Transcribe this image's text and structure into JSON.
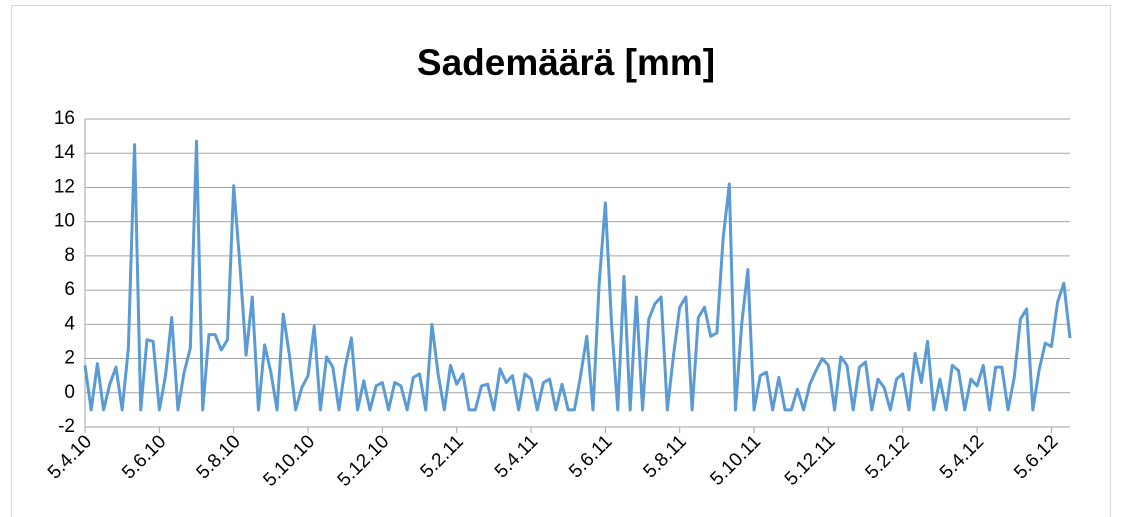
{
  "chart_data": {
    "type": "line",
    "title": "Sademäärä [mm]",
    "categories": [
      "5.4.10",
      null,
      null,
      null,
      null,
      null,
      null,
      null,
      null,
      null,
      null,
      null,
      "5.6.10",
      null,
      null,
      null,
      null,
      null,
      null,
      null,
      null,
      null,
      null,
      null,
      "5.8.10",
      null,
      null,
      null,
      null,
      null,
      null,
      null,
      null,
      null,
      null,
      null,
      "5.10.10",
      null,
      null,
      null,
      null,
      null,
      null,
      null,
      null,
      null,
      null,
      null,
      "5.12.10",
      null,
      null,
      null,
      null,
      null,
      null,
      null,
      null,
      null,
      null,
      null,
      "5.2.11",
      null,
      null,
      null,
      null,
      null,
      null,
      null,
      null,
      null,
      null,
      null,
      "5.4.11",
      null,
      null,
      null,
      null,
      null,
      null,
      null,
      null,
      null,
      null,
      null,
      "5.6.11",
      null,
      null,
      null,
      null,
      null,
      null,
      null,
      null,
      null,
      null,
      null,
      "5.8.11",
      null,
      null,
      null,
      null,
      null,
      null,
      null,
      null,
      null,
      null,
      null,
      "5.10.11",
      null,
      null,
      null,
      null,
      null,
      null,
      null,
      null,
      null,
      null,
      null,
      "5.12.11",
      null,
      null,
      null,
      null,
      null,
      null,
      null,
      null,
      null,
      null,
      null,
      "5.2.12",
      null,
      null,
      null,
      null,
      null,
      null,
      null,
      null,
      null,
      null,
      null,
      "5.4.12",
      null,
      null,
      null,
      null,
      null,
      null,
      null,
      null,
      null,
      null,
      null,
      "5.6.12",
      null,
      null,
      null
    ],
    "values": [
      1.6,
      -1,
      1.7,
      -1,
      0.5,
      1.5,
      -1,
      2.6,
      14.5,
      -1,
      3.1,
      3.0,
      -1,
      1.0,
      4.4,
      -1,
      1.2,
      2.6,
      14.7,
      -1,
      3.4,
      3.4,
      2.5,
      3.1,
      12.1,
      7.5,
      2.2,
      5.6,
      -1,
      2.8,
      1.2,
      -1,
      4.6,
      2.2,
      -1,
      0.3,
      1.0,
      3.9,
      -1,
      2.1,
      1.5,
      -1,
      1.5,
      3.2,
      -1,
      0.7,
      -1,
      0.4,
      0.6,
      -1,
      0.6,
      0.4,
      -1,
      0.9,
      1.1,
      -1,
      4.0,
      1.1,
      -1,
      1.6,
      0.5,
      1.1,
      -1,
      -1,
      0.4,
      0.5,
      -1,
      1.4,
      0.6,
      1.0,
      -1,
      1.1,
      0.8,
      -1,
      0.6,
      0.8,
      -1,
      0.5,
      -1,
      -1,
      1.0,
      3.3,
      -1,
      6.4,
      11.1,
      4.0,
      -1,
      6.8,
      -1,
      5.6,
      -1,
      4.3,
      5.2,
      5.6,
      -1,
      2.2,
      5.0,
      5.6,
      -1,
      4.4,
      5.0,
      3.3,
      3.5,
      9.0,
      12.2,
      -1,
      4.0,
      7.2,
      -1,
      1.0,
      1.2,
      -1,
      0.9,
      -1,
      -1,
      0.2,
      -1,
      0.5,
      1.3,
      2.0,
      1.6,
      -1,
      2.1,
      1.6,
      -1,
      1.5,
      1.8,
      -1,
      0.8,
      0.3,
      -1,
      0.8,
      1.1,
      -1,
      2.3,
      0.6,
      3.0,
      -1,
      0.8,
      -1,
      1.6,
      1.3,
      -1,
      0.8,
      0.4,
      1.6,
      -1,
      1.5,
      1.5,
      -1,
      0.9,
      4.3,
      4.9,
      -1,
      1.3,
      2.9,
      2.7,
      5.3,
      6.4,
      3.2
    ],
    "color": "#5b9bd5",
    "ylim": [
      -2,
      16
    ],
    "yticks": [
      -2,
      0,
      2,
      4,
      6,
      8,
      10,
      12,
      14,
      16
    ],
    "grid": true
  }
}
